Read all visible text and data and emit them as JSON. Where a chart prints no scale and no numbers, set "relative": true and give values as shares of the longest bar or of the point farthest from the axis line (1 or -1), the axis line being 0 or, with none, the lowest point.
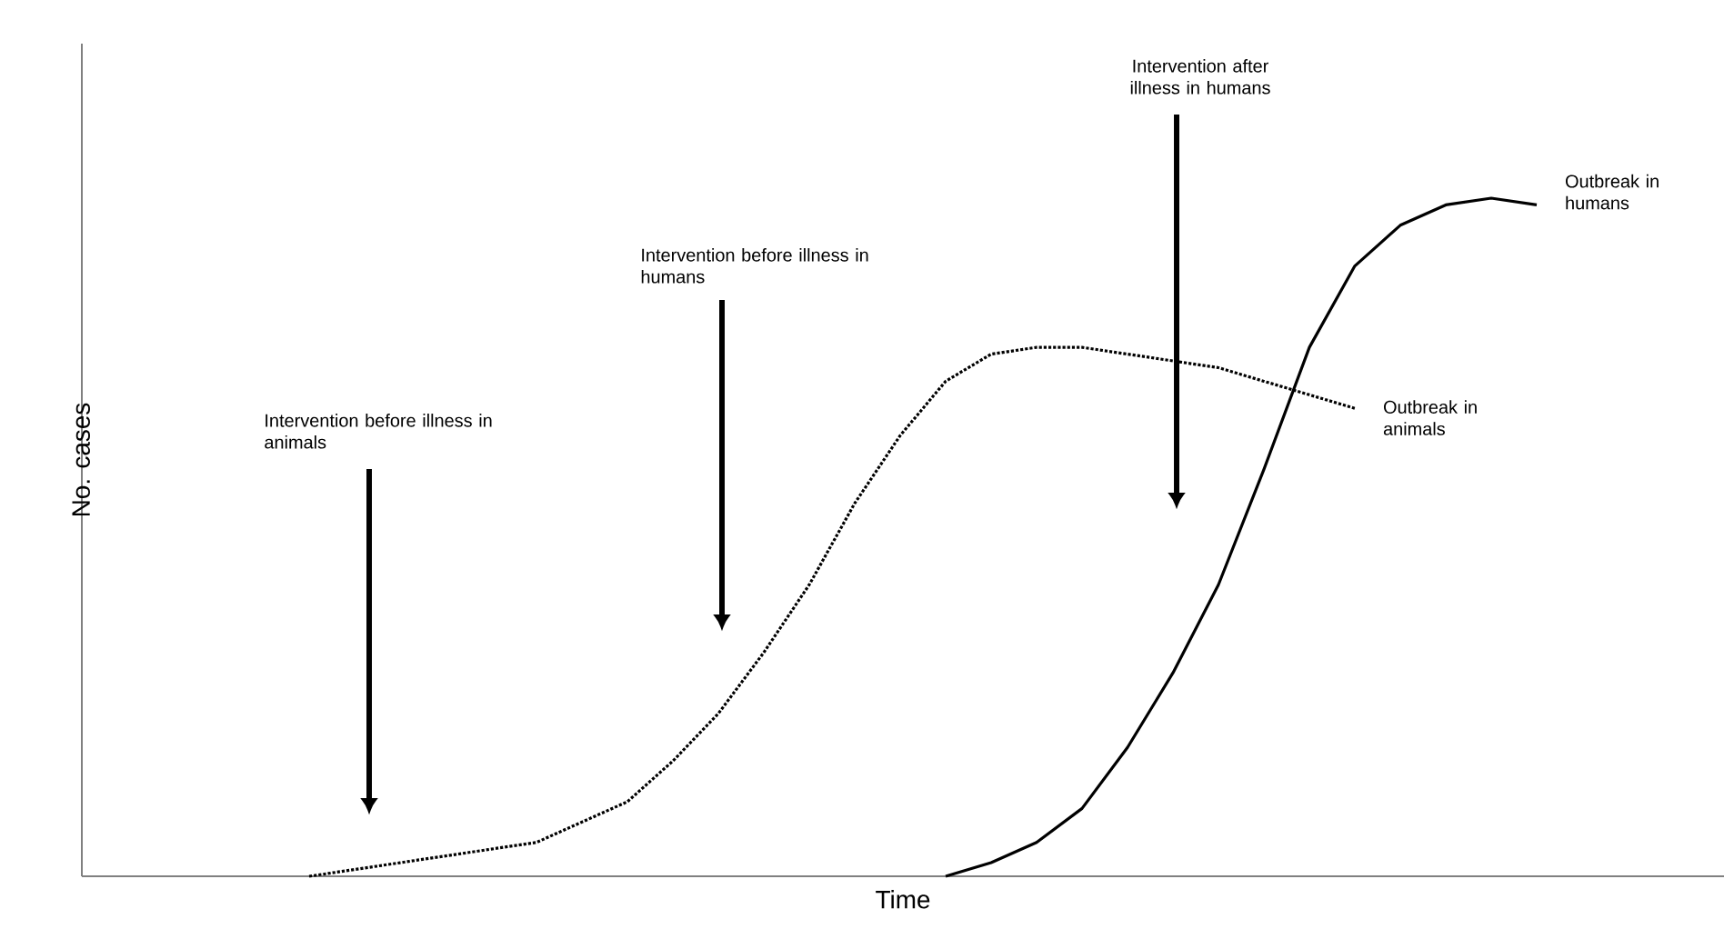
{
  "chart_data": {
    "type": "line",
    "relative": true,
    "xlabel": "Time",
    "ylabel": "No. cases",
    "legend": false,
    "categories": [
      null,
      null,
      null,
      null,
      null,
      null,
      null,
      null,
      null,
      null,
      null,
      null,
      null,
      null,
      null,
      null,
      null,
      null,
      null,
      null,
      null,
      null,
      null,
      null,
      null,
      null,
      null,
      null,
      null,
      null,
      null,
      null,
      null
    ],
    "series": [
      {
        "name": "Outbreak in animals",
        "color": "#000000",
        "line_style": "dotted",
        "values": [
          null,
          null,
          null,
          null,
          null,
          0.0,
          0.01,
          0.02,
          0.03,
          0.04,
          0.05,
          0.08,
          0.11,
          0.17,
          0.24,
          0.33,
          0.43,
          0.55,
          0.65,
          0.73,
          0.77,
          0.78,
          0.78,
          0.77,
          0.76,
          0.75,
          0.73,
          0.71,
          0.69,
          null,
          null,
          null,
          null
        ]
      },
      {
        "name": "Outbreak in humans",
        "color": "#000000",
        "line_style": "solid",
        "values": [
          null,
          null,
          null,
          null,
          null,
          null,
          null,
          null,
          null,
          null,
          null,
          null,
          null,
          null,
          null,
          null,
          null,
          null,
          null,
          0.0,
          0.02,
          0.05,
          0.1,
          0.19,
          0.3,
          0.43,
          0.6,
          0.78,
          0.9,
          0.96,
          0.99,
          1.0,
          0.99
        ]
      }
    ],
    "annotations": [
      "Intervention before illness in animals",
      "Intervention before illness in humans",
      "Intervention after illness in humans"
    ]
  }
}
